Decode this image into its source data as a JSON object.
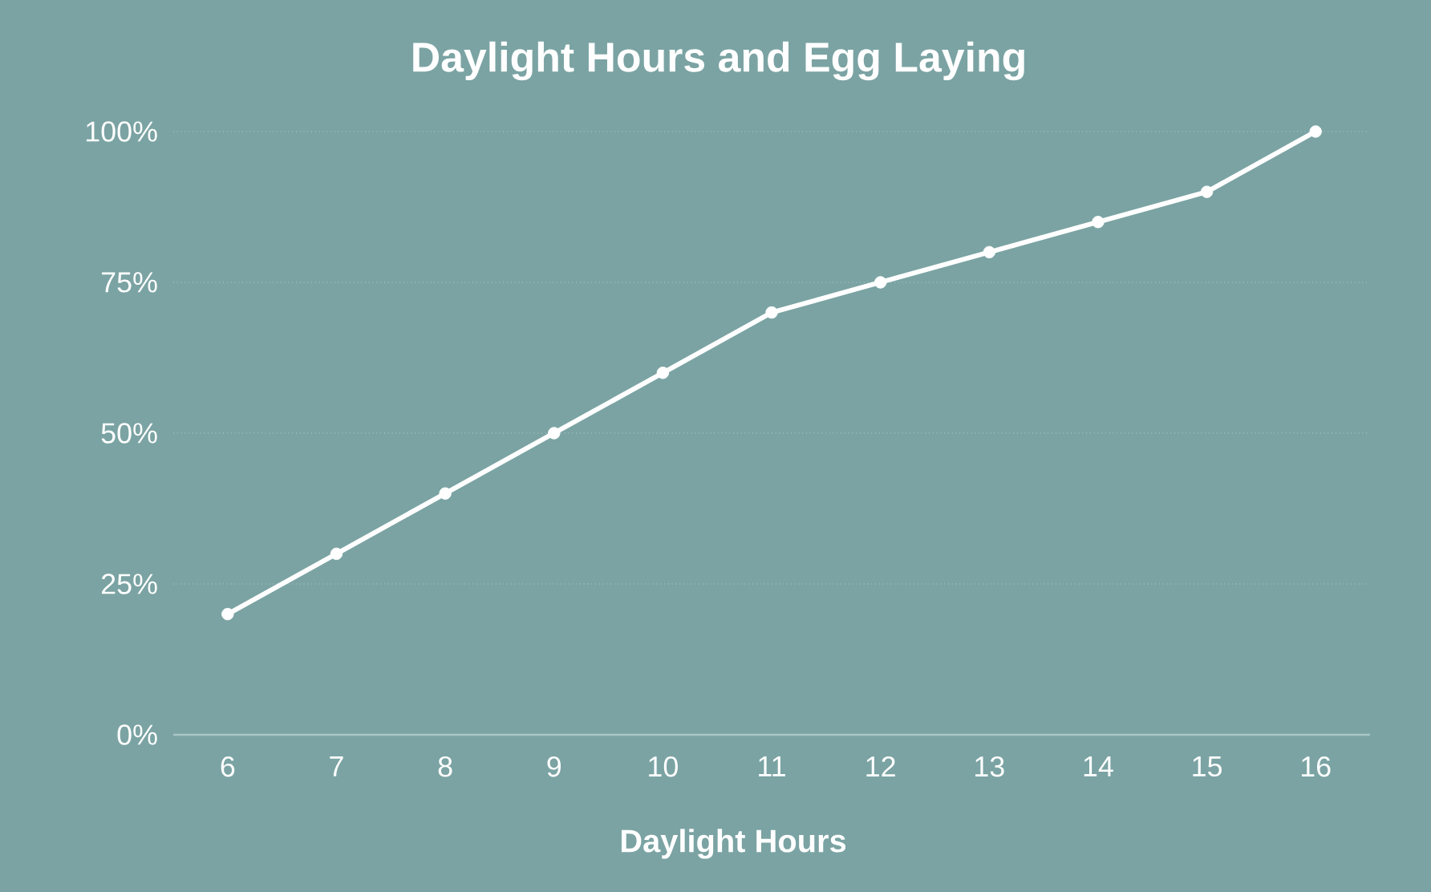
{
  "chart_data": {
    "type": "line",
    "title": "Daylight Hours and Egg Laying",
    "xlabel": "Daylight Hours",
    "categories": [
      "6",
      "7",
      "8",
      "9",
      "10",
      "11",
      "12",
      "13",
      "14",
      "15",
      "16"
    ],
    "values": [
      20,
      30,
      40,
      50,
      60,
      70,
      75,
      80,
      85,
      90,
      100
    ],
    "color": "#ffffff",
    "ylim": [
      0,
      100
    ],
    "yticks": [
      {
        "value": 0,
        "label": "0%"
      },
      {
        "value": 25,
        "label": "25%"
      },
      {
        "value": 50,
        "label": "50%"
      },
      {
        "value": 75,
        "label": "75%"
      },
      {
        "value": 100,
        "label": "100%"
      }
    ],
    "grid": "y",
    "marker": "circle",
    "line_style": "solid"
  }
}
